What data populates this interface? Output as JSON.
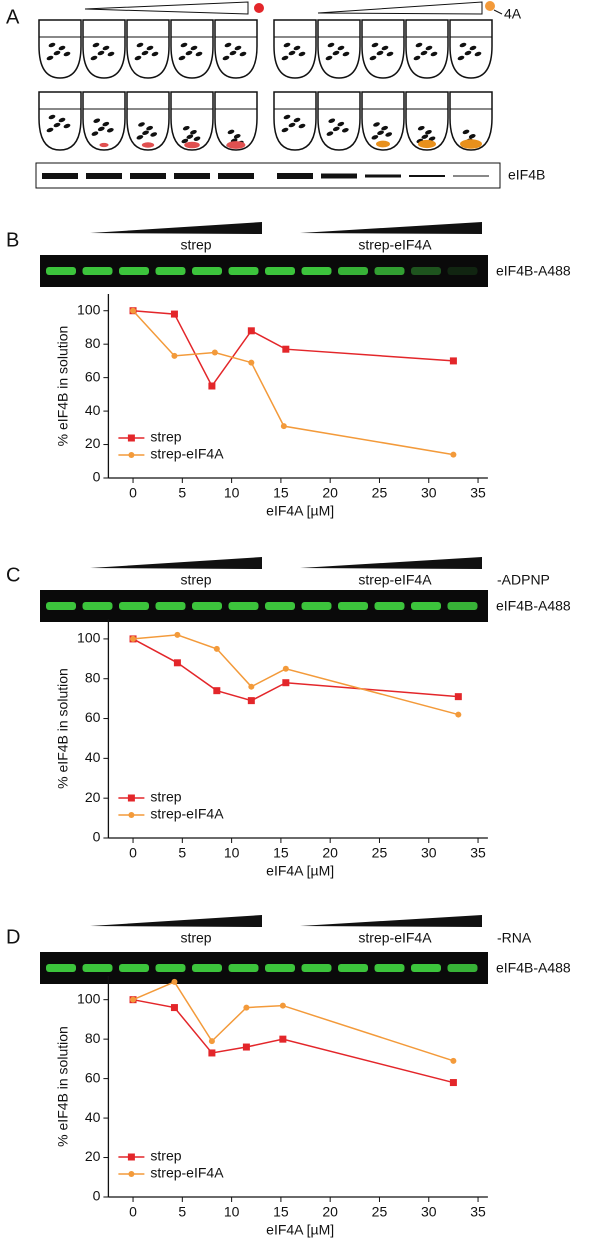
{
  "panel_a": {
    "letter": "A",
    "dot_label": "4A",
    "gel_label": "eIF4B"
  },
  "panels": [
    {
      "letter": "B",
      "groups": [
        "strep",
        "strep-eIF4A"
      ],
      "gel_label": "eIF4B-A488"
    },
    {
      "letter": "C",
      "groups": [
        "strep",
        "strep-eIF4A"
      ],
      "condition": "-ADPNP",
      "gel_label": "eIF4B-A488"
    },
    {
      "letter": "D",
      "groups": [
        "strep",
        "strep-eIF4A"
      ],
      "condition": "-RNA",
      "gel_label": "eIF4B-A488"
    }
  ],
  "chart_data": [
    {
      "type": "line",
      "x_label": "eIF4A [µM]",
      "y_label": "% eIF4B in solution",
      "xlim": [
        -2.5,
        36
      ],
      "ylim": [
        0,
        110
      ],
      "xticks": [
        0,
        5,
        10,
        15,
        20,
        25,
        30,
        35
      ],
      "yticks": [
        0,
        20,
        40,
        60,
        80,
        100
      ],
      "legend": "lower left",
      "series": [
        {
          "name": "strep",
          "color": "#e3262a",
          "marker": "square",
          "x": [
            0,
            4.2,
            8,
            12,
            15.5,
            32.5
          ],
          "values": [
            100,
            98,
            55,
            88,
            77,
            70
          ]
        },
        {
          "name": "strep-eIF4A",
          "color": "#f39a3a",
          "marker": "circle",
          "x": [
            0,
            4.2,
            8.3,
            12,
            15.3,
            32.5
          ],
          "values": [
            100,
            73,
            75,
            69,
            31,
            14
          ]
        }
      ]
    },
    {
      "type": "line",
      "x_label": "eIF4A [µM]",
      "y_label": "% eIF4B in solution",
      "xlim": [
        -2.5,
        36
      ],
      "ylim": [
        0,
        110
      ],
      "xticks": [
        0,
        5,
        10,
        15,
        20,
        25,
        30,
        35
      ],
      "yticks": [
        0,
        20,
        40,
        60,
        80,
        100
      ],
      "legend": "lower left",
      "series": [
        {
          "name": "strep",
          "color": "#e3262a",
          "marker": "square",
          "x": [
            0,
            4.5,
            8.5,
            12,
            15.5,
            33
          ],
          "values": [
            100,
            88,
            74,
            69,
            78,
            71
          ]
        },
        {
          "name": "strep-eIF4A",
          "color": "#f39a3a",
          "marker": "circle",
          "x": [
            0,
            4.5,
            8.5,
            12,
            15.5,
            33
          ],
          "values": [
            100,
            102,
            95,
            76,
            85,
            62
          ]
        }
      ]
    },
    {
      "type": "line",
      "x_label": "eIF4A [µM]",
      "y_label": "% eIF4B in solution",
      "xlim": [
        -2.5,
        36
      ],
      "ylim": [
        0,
        112
      ],
      "xticks": [
        0,
        5,
        10,
        15,
        20,
        25,
        30,
        35
      ],
      "yticks": [
        0,
        20,
        40,
        60,
        80,
        100
      ],
      "legend": "lower left",
      "series": [
        {
          "name": "strep",
          "color": "#e3262a",
          "marker": "square",
          "x": [
            0,
            4.2,
            8,
            11.5,
            15.2,
            32.5
          ],
          "values": [
            100,
            96,
            73,
            76,
            80,
            58
          ]
        },
        {
          "name": "strep-eIF4A",
          "color": "#f39a3a",
          "marker": "circle",
          "x": [
            0,
            4.2,
            8,
            11.5,
            15.2,
            32.5
          ],
          "values": [
            100,
            109,
            79,
            96,
            97,
            69
          ]
        }
      ]
    }
  ]
}
